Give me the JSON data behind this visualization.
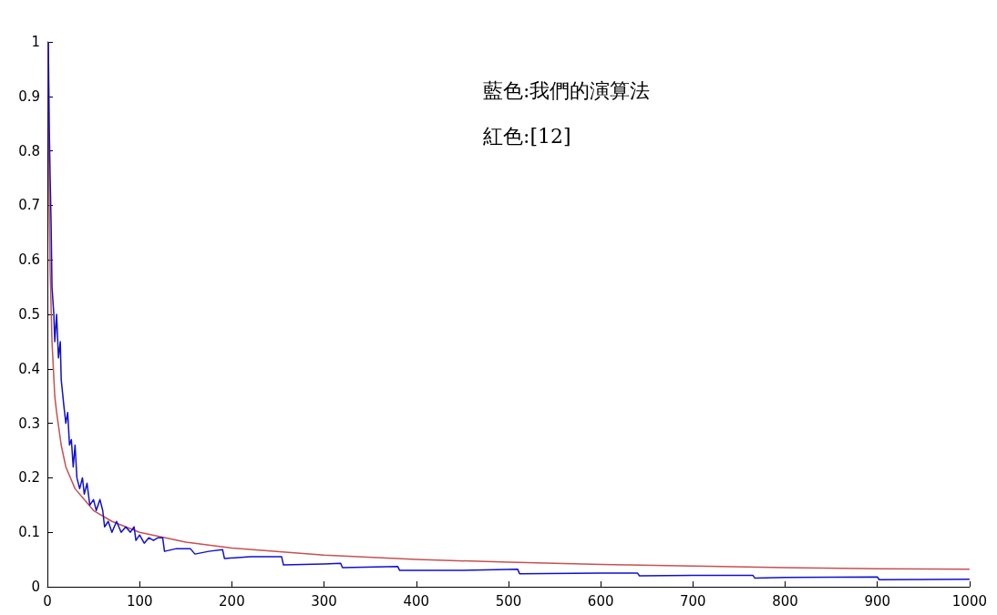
{
  "chart_data": {
    "type": "line",
    "xlim": [
      0,
      1000
    ],
    "ylim": [
      0,
      1
    ],
    "xticks": [
      0,
      100,
      200,
      300,
      400,
      500,
      600,
      700,
      800,
      900,
      1000
    ],
    "yticks": [
      0,
      0.1,
      0.2,
      0.3,
      0.4,
      0.5,
      0.6,
      0.7,
      0.8,
      0.9,
      1
    ],
    "grid": false,
    "marker": "none",
    "line_style": "solid",
    "annotations": [
      "藍色:我們的演算法",
      "紅色:[12]"
    ],
    "series": [
      {
        "color": "#1010d0",
        "x": [
          1,
          2,
          3,
          4,
          5,
          7,
          8,
          10,
          12,
          14,
          15,
          18,
          20,
          22,
          24,
          26,
          28,
          30,
          32,
          35,
          38,
          40,
          43,
          46,
          50,
          53,
          57,
          60,
          62,
          66,
          70,
          75,
          80,
          85,
          90,
          94,
          96,
          100,
          105,
          110,
          115,
          120,
          125,
          127,
          140,
          155,
          160,
          175,
          190,
          192,
          220,
          254,
          256,
          300,
          318,
          320,
          380,
          382,
          450,
          510,
          512,
          600,
          640,
          642,
          700,
          765,
          767,
          800,
          900,
          902,
          1000
        ],
        "values": [
          1,
          0.85,
          0.75,
          0.67,
          0.55,
          0.5,
          0.45,
          0.5,
          0.42,
          0.45,
          0.38,
          0.33,
          0.3,
          0.32,
          0.26,
          0.27,
          0.22,
          0.26,
          0.2,
          0.18,
          0.2,
          0.17,
          0.19,
          0.15,
          0.16,
          0.14,
          0.16,
          0.14,
          0.11,
          0.12,
          0.1,
          0.12,
          0.1,
          0.11,
          0.1,
          0.11,
          0.085,
          0.095,
          0.08,
          0.09,
          0.085,
          0.09,
          0.09,
          0.065,
          0.07,
          0.07,
          0.06,
          0.065,
          0.068,
          0.052,
          0.055,
          0.055,
          0.04,
          0.042,
          0.043,
          0.035,
          0.037,
          0.03,
          0.03,
          0.032,
          0.024,
          0.025,
          0.025,
          0.02,
          0.021,
          0.021,
          0.016,
          0.017,
          0.018,
          0.013,
          0.014
        ]
      },
      {
        "color": "#c85050",
        "x": [
          1,
          2,
          3,
          5,
          8,
          10,
          15,
          20,
          30,
          40,
          50,
          70,
          100,
          150,
          200,
          300,
          400,
          500,
          600,
          700,
          800,
          900,
          1000
        ],
        "values": [
          1,
          0.71,
          0.58,
          0.45,
          0.35,
          0.32,
          0.26,
          0.22,
          0.18,
          0.16,
          0.14,
          0.12,
          0.1,
          0.082,
          0.071,
          0.058,
          0.05,
          0.045,
          0.041,
          0.038,
          0.035,
          0.033,
          0.032
        ]
      }
    ]
  }
}
